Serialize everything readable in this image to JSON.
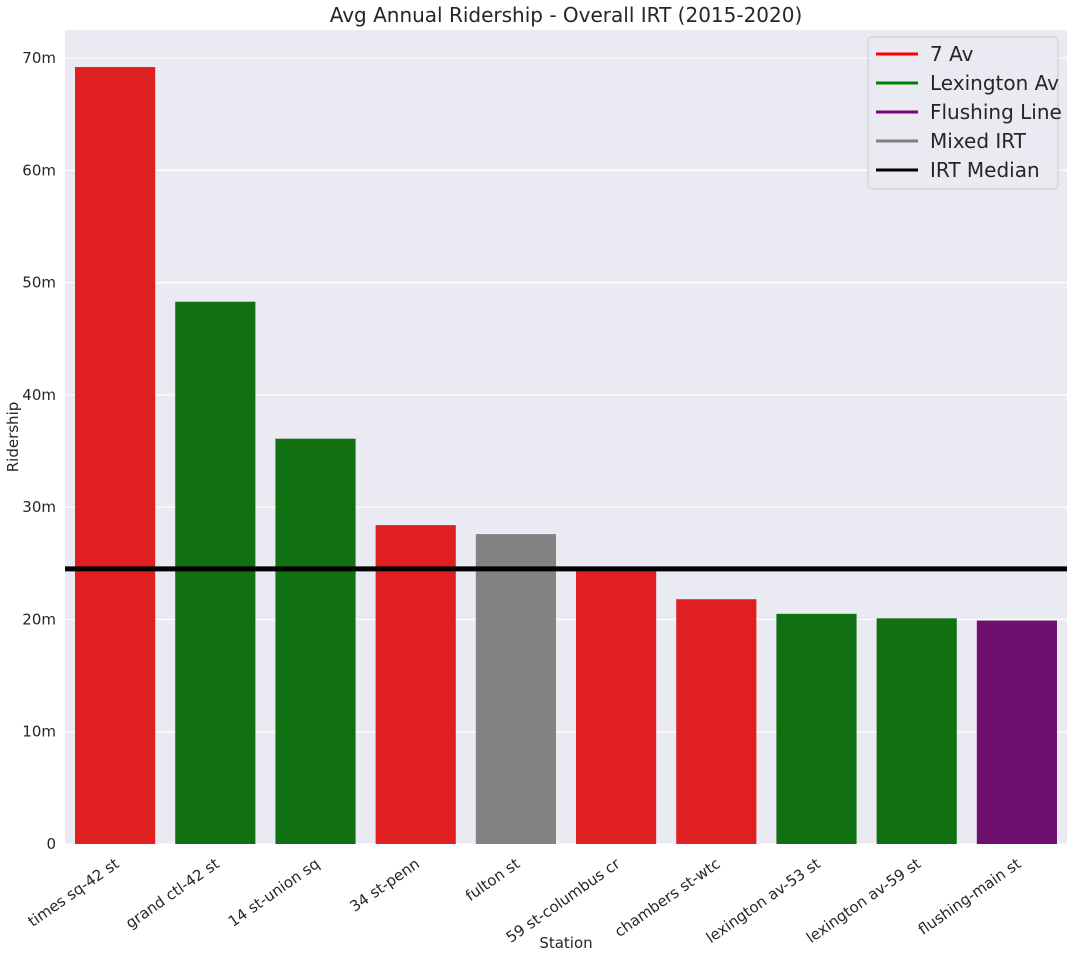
{
  "chart_data": {
    "type": "bar",
    "title": "Avg Annual Ridership - Overall IRT (2015-2020)",
    "xlabel": "Station",
    "ylabel": "Ridership",
    "ylim": [
      0,
      72.5
    ],
    "yticks": [
      0,
      10,
      20,
      30,
      40,
      50,
      60,
      70
    ],
    "ytick_labels": [
      "0",
      "10m",
      "20m",
      "30m",
      "40m",
      "50m",
      "60m",
      "70m"
    ],
    "unit": "million riders",
    "grid": true,
    "legend_position": "top-right",
    "categories": [
      "times sq-42 st",
      "grand ctl-42 st",
      "14 st-union sq",
      "34 st-penn",
      "fulton st",
      "59 st-columbus cr",
      "chambers st-wtc",
      "lexington av-53 st",
      "lexington av-59 st",
      "flushing-main st"
    ],
    "values": [
      69.2,
      48.3,
      36.1,
      28.4,
      27.6,
      24.6,
      21.8,
      20.5,
      20.1,
      19.9
    ],
    "lines": [
      "7 Av",
      "Lexington Av",
      "Lexington Av",
      "7 Av",
      "Mixed IRT",
      "7 Av",
      "7 Av",
      "Lexington Av",
      "Lexington Av",
      "Flushing Line"
    ],
    "line_colors": {
      "7 Av": "#e01f21",
      "Lexington Av": "#117112",
      "Flushing Line": "#6f0f6f",
      "Mixed IRT": "#828282"
    },
    "reference_line": {
      "name": "IRT Median",
      "value": 24.5,
      "color": "#000000"
    },
    "legend": [
      {
        "label": "7 Av",
        "color": "#ff0000"
      },
      {
        "label": "Lexington Av",
        "color": "#008000"
      },
      {
        "label": "Flushing Line",
        "color": "#800080"
      },
      {
        "label": "Mixed IRT",
        "color": "#808080"
      },
      {
        "label": "IRT Median",
        "color": "#000000"
      }
    ],
    "background_color": "#eaeaf2",
    "grid_color": "#ffffff"
  }
}
